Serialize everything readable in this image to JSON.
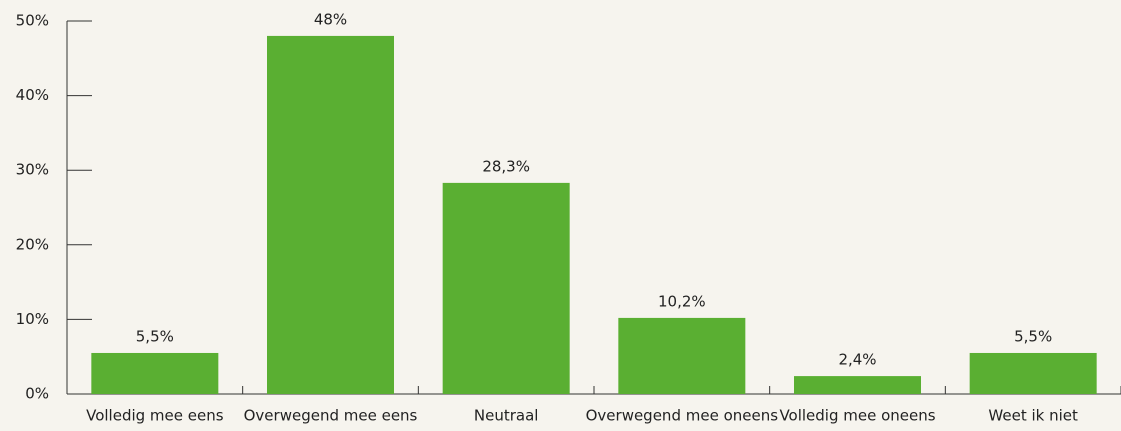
{
  "chart_data": {
    "type": "bar",
    "categories": [
      "Volledig mee eens",
      "Overwegend mee eens",
      "Neutraal",
      "Overwegend mee oneens",
      "Volledig mee oneens",
      "Weet ik niet"
    ],
    "values": [
      5.5,
      48,
      28.3,
      10.2,
      2.4,
      5.5
    ],
    "value_labels": [
      "5,5%",
      "48%",
      "28,3%",
      "10,2%",
      "2,4%",
      "5,5%"
    ],
    "color": "#5aaf32",
    "ylim": [
      0,
      50
    ],
    "yticks": [
      {
        "value": 0,
        "label": "0%"
      },
      {
        "value": 10,
        "label": "10%"
      },
      {
        "value": 20,
        "label": "20%"
      },
      {
        "value": 30,
        "label": "30%"
      },
      {
        "value": 40,
        "label": "40%"
      },
      {
        "value": 50,
        "label": "50%"
      }
    ]
  }
}
